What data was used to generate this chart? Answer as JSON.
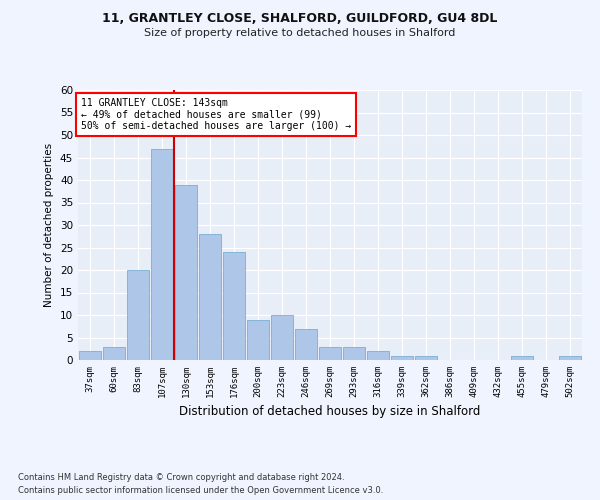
{
  "title1": "11, GRANTLEY CLOSE, SHALFORD, GUILDFORD, GU4 8DL",
  "title2": "Size of property relative to detached houses in Shalford",
  "xlabel": "Distribution of detached houses by size in Shalford",
  "ylabel": "Number of detached properties",
  "bar_color": "#aec6e8",
  "bar_edge_color": "#7aafd4",
  "bg_color": "#e8eef8",
  "grid_color": "#ffffff",
  "annotation_text": "11 GRANTLEY CLOSE: 143sqm\n← 49% of detached houses are smaller (99)\n50% of semi-detached houses are larger (100) →",
  "vline_color": "#cc0000",
  "vline_x": 3.5,
  "categories": [
    "37sqm",
    "60sqm",
    "83sqm",
    "107sqm",
    "130sqm",
    "153sqm",
    "176sqm",
    "200sqm",
    "223sqm",
    "246sqm",
    "269sqm",
    "293sqm",
    "316sqm",
    "339sqm",
    "362sqm",
    "386sqm",
    "409sqm",
    "432sqm",
    "455sqm",
    "479sqm",
    "502sqm"
  ],
  "values": [
    2,
    3,
    20,
    47,
    39,
    28,
    24,
    9,
    10,
    7,
    3,
    3,
    2,
    1,
    1,
    0,
    0,
    0,
    1,
    0,
    1
  ],
  "ylim": [
    0,
    60
  ],
  "yticks": [
    0,
    5,
    10,
    15,
    20,
    25,
    30,
    35,
    40,
    45,
    50,
    55,
    60
  ],
  "footnote1": "Contains HM Land Registry data © Crown copyright and database right 2024.",
  "footnote2": "Contains public sector information licensed under the Open Government Licence v3.0.",
  "fig_bg": "#f0f4ff"
}
